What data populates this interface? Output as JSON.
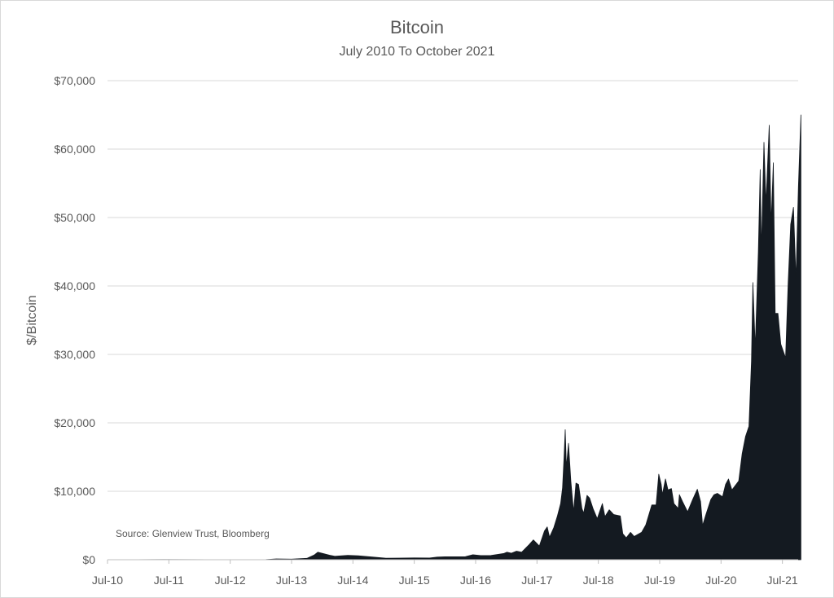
{
  "chart_data": {
    "type": "area",
    "title": "Bitcoin",
    "subtitle": "July 2010 To October 2021",
    "ylabel": "$/Bitcoin",
    "xlabel": "",
    "source": "Source: Glenview Trust, Bloomberg",
    "ylim": [
      0,
      70000
    ],
    "xlim": [
      "2010-07",
      "2021-10"
    ],
    "grid": true,
    "legend": "none",
    "fill_color": "#141a21",
    "y_ticks": [
      {
        "value": 0,
        "label": "$0"
      },
      {
        "value": 10000,
        "label": "$10,000"
      },
      {
        "value": 20000,
        "label": "$20,000"
      },
      {
        "value": 30000,
        "label": "$30,000"
      },
      {
        "value": 40000,
        "label": "$40,000"
      },
      {
        "value": 50000,
        "label": "$50,000"
      },
      {
        "value": 60000,
        "label": "$60,000"
      },
      {
        "value": 70000,
        "label": "$70,000"
      }
    ],
    "x_ticks": [
      {
        "value": "2010-07",
        "label": "Jul-10"
      },
      {
        "value": "2011-07",
        "label": "Jul-11"
      },
      {
        "value": "2012-07",
        "label": "Jul-12"
      },
      {
        "value": "2013-07",
        "label": "Jul-13"
      },
      {
        "value": "2014-07",
        "label": "Jul-14"
      },
      {
        "value": "2015-07",
        "label": "Jul-15"
      },
      {
        "value": "2016-07",
        "label": "Jul-16"
      },
      {
        "value": "2017-07",
        "label": "Jul-17"
      },
      {
        "value": "2018-07",
        "label": "Jul-18"
      },
      {
        "value": "2019-07",
        "label": "Jul-19"
      },
      {
        "value": "2020-07",
        "label": "Jul-20"
      },
      {
        "value": "2021-07",
        "label": "Jul-21"
      }
    ],
    "series": [
      {
        "points": [
          [
            "2010-07-15",
            0
          ],
          [
            "2011-06-01",
            20
          ],
          [
            "2012-07-01",
            10
          ],
          [
            "2013-02-01",
            30
          ],
          [
            "2013-04-01",
            120
          ],
          [
            "2013-07-01",
            90
          ],
          [
            "2013-10-01",
            200
          ],
          [
            "2013-11-15",
            700
          ],
          [
            "2013-12-05",
            1100
          ],
          [
            "2014-01-15",
            850
          ],
          [
            "2014-02-15",
            650
          ],
          [
            "2014-03-15",
            500
          ],
          [
            "2014-06-01",
            640
          ],
          [
            "2014-08-01",
            580
          ],
          [
            "2014-11-01",
            380
          ],
          [
            "2015-01-15",
            220
          ],
          [
            "2015-04-01",
            240
          ],
          [
            "2015-07-01",
            270
          ],
          [
            "2015-10-01",
            250
          ],
          [
            "2015-11-15",
            380
          ],
          [
            "2016-01-01",
            430
          ],
          [
            "2016-05-01",
            450
          ],
          [
            "2016-06-15",
            720
          ],
          [
            "2016-08-01",
            600
          ],
          [
            "2016-10-01",
            620
          ],
          [
            "2016-12-15",
            900
          ],
          [
            "2017-01-05",
            1100
          ],
          [
            "2017-02-01",
            950
          ],
          [
            "2017-03-01",
            1250
          ],
          [
            "2017-04-01",
            1100
          ],
          [
            "2017-05-15",
            2200
          ],
          [
            "2017-06-10",
            2900
          ],
          [
            "2017-07-15",
            2000
          ],
          [
            "2017-08-15",
            4200
          ],
          [
            "2017-09-01",
            4800
          ],
          [
            "2017-09-15",
            3300
          ],
          [
            "2017-10-10",
            4700
          ],
          [
            "2017-11-01",
            6400
          ],
          [
            "2017-11-20",
            8200
          ],
          [
            "2017-12-01",
            10500
          ],
          [
            "2017-12-10",
            15000
          ],
          [
            "2017-12-17",
            19000
          ],
          [
            "2017-12-24",
            13500
          ],
          [
            "2018-01-06",
            17000
          ],
          [
            "2018-01-20",
            11500
          ],
          [
            "2018-02-06",
            7000
          ],
          [
            "2018-02-20",
            11200
          ],
          [
            "2018-03-05",
            11000
          ],
          [
            "2018-03-25",
            7500
          ],
          [
            "2018-04-05",
            6800
          ],
          [
            "2018-04-25",
            9400
          ],
          [
            "2018-05-10",
            9000
          ],
          [
            "2018-06-01",
            7400
          ],
          [
            "2018-06-25",
            6000
          ],
          [
            "2018-07-25",
            8200
          ],
          [
            "2018-08-10",
            6300
          ],
          [
            "2018-09-05",
            7300
          ],
          [
            "2018-10-01",
            6600
          ],
          [
            "2018-11-10",
            6400
          ],
          [
            "2018-11-25",
            3800
          ],
          [
            "2018-12-15",
            3200
          ],
          [
            "2019-01-10",
            4000
          ],
          [
            "2019-02-01",
            3400
          ],
          [
            "2019-03-15",
            4000
          ],
          [
            "2019-04-10",
            5100
          ],
          [
            "2019-05-15",
            8000
          ],
          [
            "2019-06-10",
            8000
          ],
          [
            "2019-06-26",
            12500
          ],
          [
            "2019-07-10",
            11000
          ],
          [
            "2019-07-17",
            9500
          ],
          [
            "2019-08-05",
            11800
          ],
          [
            "2019-08-20",
            10200
          ],
          [
            "2019-09-10",
            10400
          ],
          [
            "2019-09-25",
            8200
          ],
          [
            "2019-10-20",
            7500
          ],
          [
            "2019-10-27",
            9500
          ],
          [
            "2019-11-15",
            8500
          ],
          [
            "2019-12-15",
            7000
          ],
          [
            "2020-01-15",
            8800
          ],
          [
            "2020-02-12",
            10300
          ],
          [
            "2020-03-01",
            8500
          ],
          [
            "2020-03-13",
            5000
          ],
          [
            "2020-04-01",
            6500
          ],
          [
            "2020-05-01",
            8800
          ],
          [
            "2020-05-20",
            9500
          ],
          [
            "2020-06-10",
            9700
          ],
          [
            "2020-07-10",
            9200
          ],
          [
            "2020-07-28",
            11000
          ],
          [
            "2020-08-15",
            11800
          ],
          [
            "2020-09-05",
            10200
          ],
          [
            "2020-10-15",
            11500
          ],
          [
            "2020-11-05",
            15500
          ],
          [
            "2020-11-25",
            18000
          ],
          [
            "2020-12-15",
            19500
          ],
          [
            "2020-12-30",
            29000
          ],
          [
            "2021-01-08",
            40500
          ],
          [
            "2021-01-22",
            31000
          ],
          [
            "2021-02-10",
            45000
          ],
          [
            "2021-02-21",
            57000
          ],
          [
            "2021-02-28",
            45000
          ],
          [
            "2021-03-13",
            61000
          ],
          [
            "2021-03-25",
            52000
          ],
          [
            "2021-04-14",
            63500
          ],
          [
            "2021-04-25",
            49000
          ],
          [
            "2021-05-08",
            58000
          ],
          [
            "2021-05-19",
            36000
          ],
          [
            "2021-06-05",
            36000
          ],
          [
            "2021-06-22",
            31500
          ],
          [
            "2021-07-20",
            29500
          ],
          [
            "2021-08-05",
            40500
          ],
          [
            "2021-08-20",
            49000
          ],
          [
            "2021-09-06",
            51500
          ],
          [
            "2021-09-21",
            41000
          ],
          [
            "2021-10-05",
            54500
          ],
          [
            "2021-10-20",
            65000
          ]
        ]
      }
    ]
  }
}
